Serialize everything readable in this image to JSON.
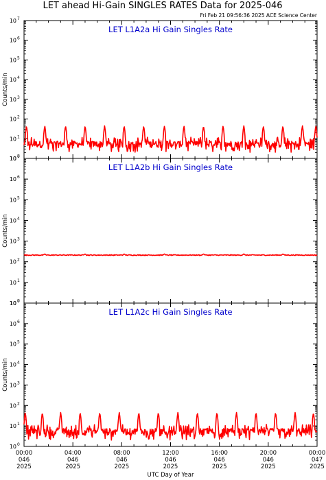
{
  "page": {
    "title": "LET ahead Hi-Gain SINGLES RATES Data for 2025-046",
    "timestamp": "Fri Feb 21 09:56:36 2025 ACE Science Center"
  },
  "colors": {
    "data": "#ff0000",
    "panel_title": "#0000cc",
    "axes": "#000000",
    "background": "#ffffff"
  },
  "chart_data": [
    {
      "type": "line",
      "title": "LET L1A2a Hi Gain Singles Rate",
      "ylabel": "Counts/min",
      "xlabel": "",
      "yscale": "log",
      "ylim": [
        1,
        10000000
      ],
      "yticks": [
        {
          "base": "10",
          "exp": "0"
        },
        {
          "base": "10",
          "exp": "1"
        },
        {
          "base": "10",
          "exp": "2"
        },
        {
          "base": "10",
          "exp": "3"
        },
        {
          "base": "10",
          "exp": "4"
        },
        {
          "base": "10",
          "exp": "5"
        },
        {
          "base": "10",
          "exp": "6"
        },
        {
          "base": "10",
          "exp": "7"
        }
      ],
      "xlim_hours": [
        0,
        24
      ],
      "baseline": 5,
      "noise_low": 2,
      "noise_high": 10,
      "spike_peak": 45,
      "spike_hours": [
        0.2,
        1.7,
        3.4,
        5.0,
        6.6,
        8.2,
        9.8,
        11.5,
        13.1,
        14.7,
        16.3,
        18.0,
        19.6,
        21.2,
        22.8,
        23.9
      ]
    },
    {
      "type": "line",
      "title": "LET L1A2b Hi Gain Singles Rate",
      "ylabel": "Counts/min",
      "xlabel": "",
      "yscale": "log",
      "ylim": [
        1,
        10000000
      ],
      "yticks": [
        {
          "base": "10",
          "exp": "0"
        },
        {
          "base": "10",
          "exp": "1"
        },
        {
          "base": "10",
          "exp": "2"
        },
        {
          "base": "10",
          "exp": "3"
        },
        {
          "base": "10",
          "exp": "4"
        },
        {
          "base": "10",
          "exp": "5"
        },
        {
          "base": "10",
          "exp": "6"
        },
        {
          "base": "10",
          "exp": "7"
        }
      ],
      "xlim_hours": [
        0,
        24
      ],
      "baseline": 210,
      "noise_low": 200,
      "noise_high": 220,
      "spike_peak": 240,
      "spike_hours": [
        1.7,
        5.0,
        8.2,
        11.5,
        14.7,
        18.0,
        21.2
      ]
    },
    {
      "type": "line",
      "title": "LET L1A2c Hi Gain Singles Rate",
      "ylabel": "Counts/min",
      "xlabel": "UTC Day of Year",
      "yscale": "log",
      "ylim": [
        1,
        10000000
      ],
      "yticks": [
        {
          "base": "10",
          "exp": "0"
        },
        {
          "base": "10",
          "exp": "1"
        },
        {
          "base": "10",
          "exp": "2"
        },
        {
          "base": "10",
          "exp": "3"
        },
        {
          "base": "10",
          "exp": "4"
        },
        {
          "base": "10",
          "exp": "5"
        },
        {
          "base": "10",
          "exp": "6"
        },
        {
          "base": "10",
          "exp": "7"
        }
      ],
      "xlim_hours": [
        0,
        24
      ],
      "baseline": 5,
      "noise_low": 2,
      "noise_high": 10,
      "spike_peak": 45,
      "spike_hours": [
        0.1,
        1.5,
        3.0,
        4.6,
        6.2,
        7.8,
        9.4,
        11.0,
        12.6,
        14.2,
        15.8,
        17.4,
        19.0,
        20.6,
        22.2,
        23.7
      ],
      "xticks": [
        {
          "time": "00:00",
          "day": "046",
          "year": "2025"
        },
        {
          "time": "04:00",
          "day": "046",
          "year": "2025"
        },
        {
          "time": "08:00",
          "day": "046",
          "year": "2025"
        },
        {
          "time": "12:00",
          "day": "046",
          "year": "2025"
        },
        {
          "time": "16:00",
          "day": "046",
          "year": "2025"
        },
        {
          "time": "20:00",
          "day": "046",
          "year": "2025"
        },
        {
          "time": "00:00",
          "day": "047",
          "year": "2025"
        }
      ]
    }
  ]
}
